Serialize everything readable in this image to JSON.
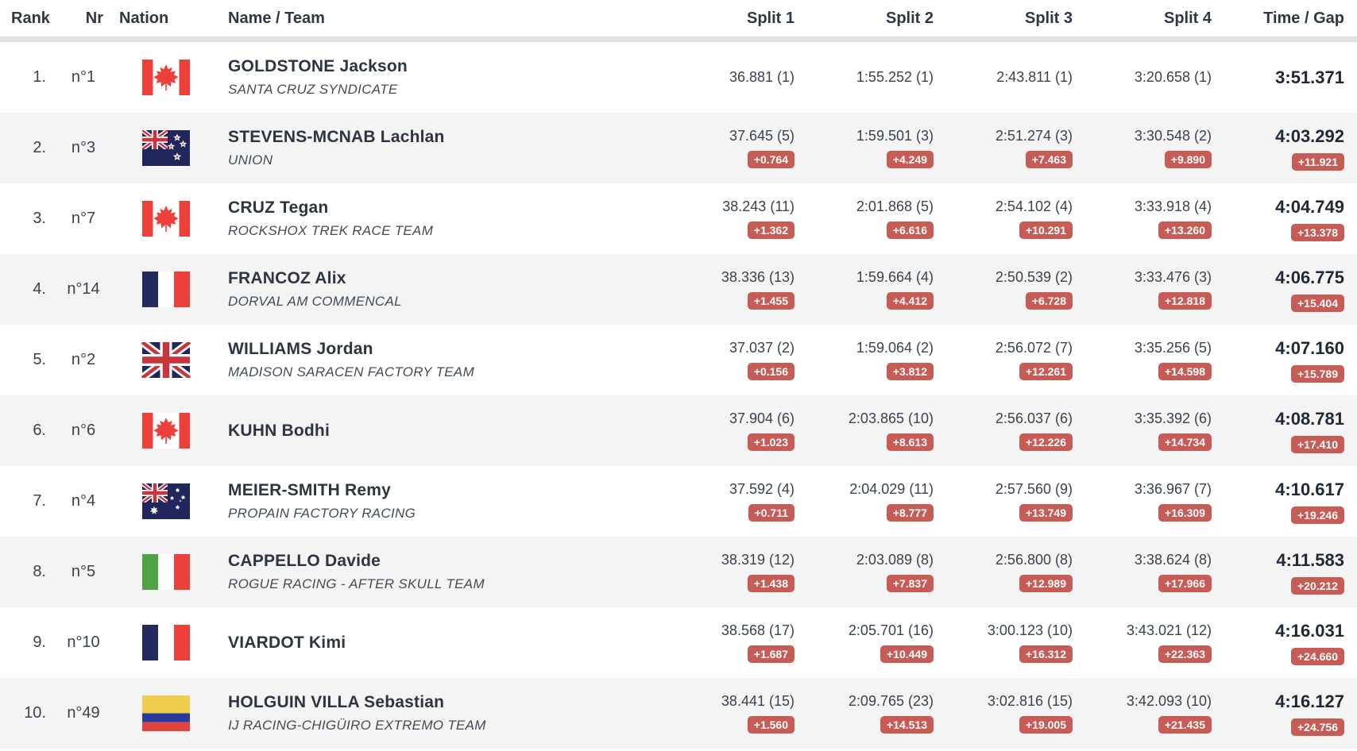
{
  "colors": {
    "badge_background": "#c75b55",
    "badge_text": "#ffffff",
    "row_alternate": "#f4f4f5",
    "header_divider": "#e2e2e4",
    "header_text": "#2e3744",
    "body_text": "#39434e"
  },
  "table": {
    "columns": [
      "Rank",
      "Nr",
      "Nation",
      "Name / Team",
      "Split 1",
      "Split 2",
      "Split 3",
      "Split 4",
      "Time / Gap"
    ],
    "rows": [
      {
        "rank": "1.",
        "nr": "n°1",
        "nation": "canada",
        "name": "GOLDSTONE Jackson",
        "team": "SANTA CRUZ SYNDICATE",
        "splits": [
          "36.881 (1)",
          "1:55.252 (1)",
          "2:43.811 (1)",
          "3:20.658 (1)"
        ],
        "gaps": [
          "",
          "",
          "",
          ""
        ],
        "time": "3:51.371",
        "time_gap": ""
      },
      {
        "rank": "2.",
        "nr": "n°3",
        "nation": "new-zealand",
        "name": "STEVENS-MCNAB Lachlan",
        "team": "UNION",
        "splits": [
          "37.645 (5)",
          "1:59.501 (3)",
          "2:51.274 (3)",
          "3:30.548 (2)"
        ],
        "gaps": [
          "+0.764",
          "+4.249",
          "+7.463",
          "+9.890"
        ],
        "time": "4:03.292",
        "time_gap": "+11.921"
      },
      {
        "rank": "3.",
        "nr": "n°7",
        "nation": "canada",
        "name": "CRUZ Tegan",
        "team": "ROCKSHOX TREK RACE TEAM",
        "splits": [
          "38.243 (11)",
          "2:01.868 (5)",
          "2:54.102 (4)",
          "3:33.918 (4)"
        ],
        "gaps": [
          "+1.362",
          "+6.616",
          "+10.291",
          "+13.260"
        ],
        "time": "4:04.749",
        "time_gap": "+13.378"
      },
      {
        "rank": "4.",
        "nr": "n°14",
        "nation": "france",
        "name": "FRANCOZ Alix",
        "team": "DORVAL AM COMMENCAL",
        "splits": [
          "38.336 (13)",
          "1:59.664 (4)",
          "2:50.539 (2)",
          "3:33.476 (3)"
        ],
        "gaps": [
          "+1.455",
          "+4.412",
          "+6.728",
          "+12.818"
        ],
        "time": "4:06.775",
        "time_gap": "+15.404"
      },
      {
        "rank": "5.",
        "nr": "n°2",
        "nation": "great-britain",
        "name": "WILLIAMS Jordan",
        "team": "MADISON SARACEN FACTORY TEAM",
        "splits": [
          "37.037 (2)",
          "1:59.064 (2)",
          "2:56.072 (7)",
          "3:35.256 (5)"
        ],
        "gaps": [
          "+0.156",
          "+3.812",
          "+12.261",
          "+14.598"
        ],
        "time": "4:07.160",
        "time_gap": "+15.789"
      },
      {
        "rank": "6.",
        "nr": "n°6",
        "nation": "canada",
        "name": "KUHN Bodhi",
        "team": "",
        "splits": [
          "37.904 (6)",
          "2:03.865 (10)",
          "2:56.037 (6)",
          "3:35.392 (6)"
        ],
        "gaps": [
          "+1.023",
          "+8.613",
          "+12.226",
          "+14.734"
        ],
        "time": "4:08.781",
        "time_gap": "+17.410"
      },
      {
        "rank": "7.",
        "nr": "n°4",
        "nation": "australia",
        "name": "MEIER-SMITH Remy",
        "team": "PROPAIN FACTORY RACING",
        "splits": [
          "37.592 (4)",
          "2:04.029 (11)",
          "2:57.560 (9)",
          "3:36.967 (7)"
        ],
        "gaps": [
          "+0.711",
          "+8.777",
          "+13.749",
          "+16.309"
        ],
        "time": "4:10.617",
        "time_gap": "+19.246"
      },
      {
        "rank": "8.",
        "nr": "n°5",
        "nation": "italy",
        "name": "CAPPELLO Davide",
        "team": "ROGUE RACING - AFTER SKULL TEAM",
        "splits": [
          "38.319 (12)",
          "2:03.089 (8)",
          "2:56.800 (8)",
          "3:38.624 (8)"
        ],
        "gaps": [
          "+1.438",
          "+7.837",
          "+12.989",
          "+17.966"
        ],
        "time": "4:11.583",
        "time_gap": "+20.212"
      },
      {
        "rank": "9.",
        "nr": "n°10",
        "nation": "france",
        "name": "VIARDOT Kimi",
        "team": "",
        "splits": [
          "38.568 (17)",
          "2:05.701 (16)",
          "3:00.123 (10)",
          "3:43.021 (12)"
        ],
        "gaps": [
          "+1.687",
          "+10.449",
          "+16.312",
          "+22.363"
        ],
        "time": "4:16.031",
        "time_gap": "+24.660"
      },
      {
        "rank": "10.",
        "nr": "n°49",
        "nation": "colombia",
        "name": "HOLGUIN VILLA Sebastian",
        "team": "IJ RACING-CHIGÜIRO EXTREMO TEAM",
        "splits": [
          "38.441 (15)",
          "2:09.765 (23)",
          "3:02.816 (15)",
          "3:42.093 (10)"
        ],
        "gaps": [
          "+1.560",
          "+14.513",
          "+19.005",
          "+21.435"
        ],
        "time": "4:16.127",
        "time_gap": "+24.756"
      }
    ]
  }
}
